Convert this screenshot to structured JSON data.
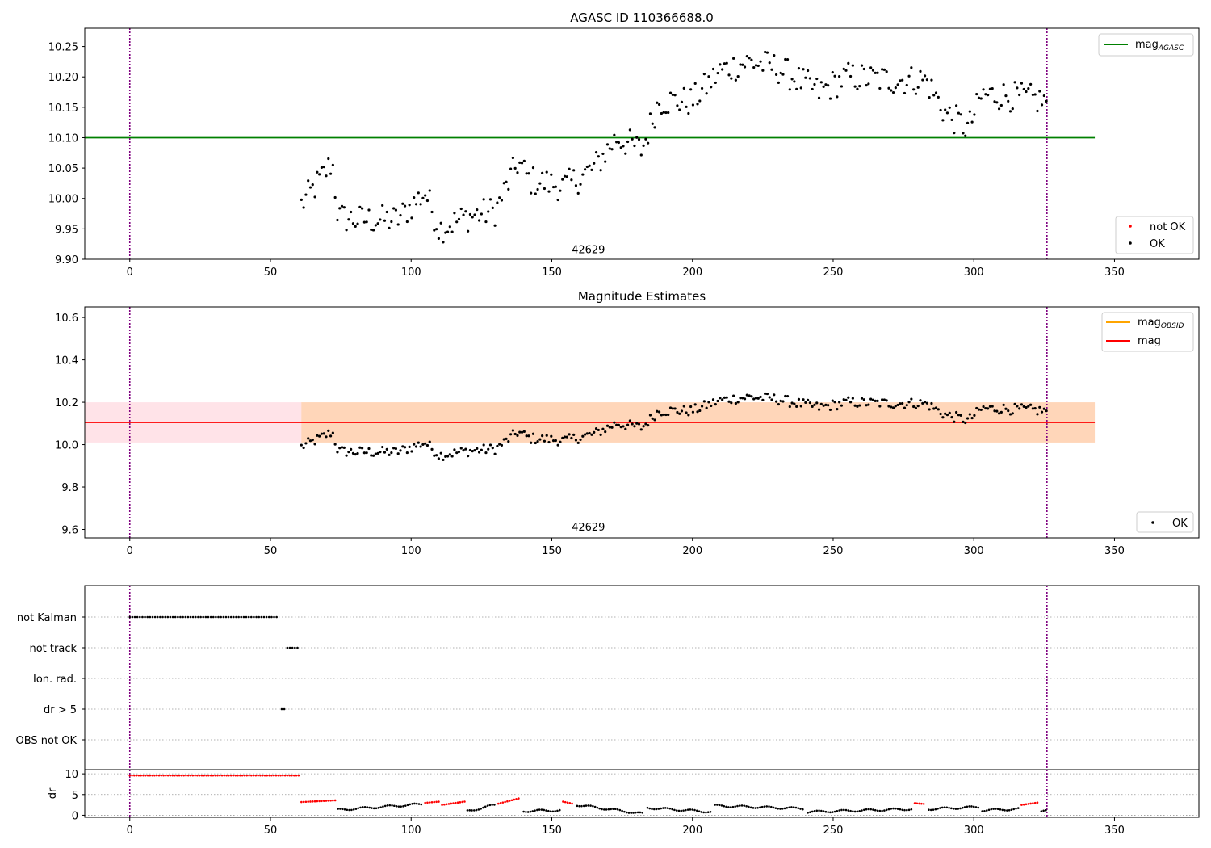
{
  "chart_data": [
    {
      "type": "scatter",
      "title": "AGASC ID 110366688.0",
      "xlim": [
        -16,
        380
      ],
      "ylim": [
        9.9,
        10.28
      ],
      "xticks": [
        0,
        50,
        100,
        150,
        200,
        250,
        300,
        350
      ],
      "yticks": [
        9.9,
        9.95,
        10.0,
        10.05,
        10.1,
        10.15,
        10.2,
        10.25
      ],
      "ytick_labels": [
        "9.90",
        "9.95",
        "10.00",
        "10.05",
        "10.10",
        "10.15",
        "10.20",
        "10.25"
      ],
      "hline": {
        "y": 10.1,
        "x_start": -16,
        "x_end": 343,
        "color": "#008000"
      },
      "vlines": [
        0,
        326
      ],
      "annotation": {
        "text": "42629",
        "x": 163,
        "y": 9.91
      },
      "legend_lines": [
        {
          "label": "mag",
          "sub": "AGASC",
          "color": "#008000"
        }
      ],
      "legend_points": [
        {
          "label": "not OK",
          "color": "#ff0000"
        },
        {
          "label": "OK",
          "color": "#000000"
        }
      ],
      "series": [
        {
          "name": "OK",
          "color": "#000000",
          "x": [],
          "y": []
        }
      ]
    },
    {
      "type": "scatter",
      "title": "Magnitude Estimates",
      "xlim": [
        -16,
        380
      ],
      "ylim": [
        9.56,
        10.65
      ],
      "xticks": [
        0,
        50,
        100,
        150,
        200,
        250,
        300,
        350
      ],
      "yticks": [
        9.6,
        9.8,
        10.0,
        10.2,
        10.4,
        10.6
      ],
      "ytick_labels": [
        "9.6",
        "9.8",
        "10.0",
        "10.2",
        "10.4",
        "10.6"
      ],
      "hline": {
        "y": 10.105,
        "x_start": -16,
        "x_end": 343,
        "color": "#ff0000"
      },
      "bands": [
        {
          "x_start": -16,
          "x_end": 343,
          "y_low": 10.01,
          "y_high": 10.2,
          "color": "#ffc0cb"
        },
        {
          "x_start": 61,
          "x_end": 343,
          "y_low": 10.01,
          "y_high": 10.2,
          "color": "#ffa500"
        }
      ],
      "vlines": [
        0,
        326
      ],
      "annotation": {
        "text": "42629",
        "x": 163,
        "y": 9.595
      },
      "legend_lines": [
        {
          "label": "mag",
          "sub": "OBSID",
          "color": "#ffa500"
        },
        {
          "label": "mag",
          "sub": "",
          "color": "#ff0000"
        }
      ],
      "legend_points": [
        {
          "label": "OK",
          "color": "#000000"
        }
      ],
      "series": [
        {
          "name": "OK",
          "color": "#000000",
          "x": [],
          "y": []
        }
      ]
    },
    {
      "type": "scatter",
      "xlim": [
        -16,
        380
      ],
      "categories": [
        "not Kalman",
        "not track",
        "Ion. rad.",
        "dr > 5",
        "OBS not OK"
      ],
      "flags": [
        {
          "category": "not Kalman",
          "x_start": 0,
          "x_end": 53
        },
        {
          "category": "not track",
          "x_start": 56,
          "x_end": 60
        },
        {
          "category": "dr > 5",
          "x_start": 54,
          "x_end": 55
        }
      ],
      "vlines": [
        0,
        326
      ]
    },
    {
      "type": "scatter",
      "xlim": [
        -16,
        380
      ],
      "ylim": [
        -0.5,
        11
      ],
      "ylabel": "dr",
      "xticks": [
        0,
        50,
        100,
        150,
        200,
        250,
        300,
        350
      ],
      "yticks": [
        0,
        5,
        10
      ],
      "vlines": [
        0,
        326
      ],
      "series": [
        {
          "name": "not OK",
          "color": "#ff0000",
          "segments": [
            [
              0,
              60,
              9.6,
              9.6
            ],
            [
              61,
              73,
              3.2,
              3.6
            ],
            [
              105,
              110,
              3.0,
              3.3
            ],
            [
              111,
              119,
              2.5,
              3.3
            ],
            [
              131,
              139,
              2.8,
              4.2
            ],
            [
              154,
              158,
              3.3,
              2.7
            ],
            [
              279,
              283,
              2.9,
              2.7
            ],
            [
              317,
              323,
              2.5,
              3.1
            ]
          ]
        },
        {
          "name": "OK",
          "color": "#000000",
          "segments": [
            [
              74,
              104,
              1.3,
              2.7
            ],
            [
              120,
              130,
              1.0,
              2.5
            ],
            [
              140,
              153,
              1.0,
              1.2
            ],
            [
              159,
              183,
              2.5,
              0.3
            ],
            [
              184,
              207,
              1.8,
              0.8
            ],
            [
              208,
              240,
              2.3,
              1.6
            ],
            [
              241,
              278,
              0.8,
              1.5
            ],
            [
              284,
              302,
              1.5,
              2.0
            ],
            [
              303,
              316,
              1.2,
              1.5
            ],
            [
              324,
              326,
              0.8,
              1.0
            ]
          ]
        }
      ]
    }
  ]
}
